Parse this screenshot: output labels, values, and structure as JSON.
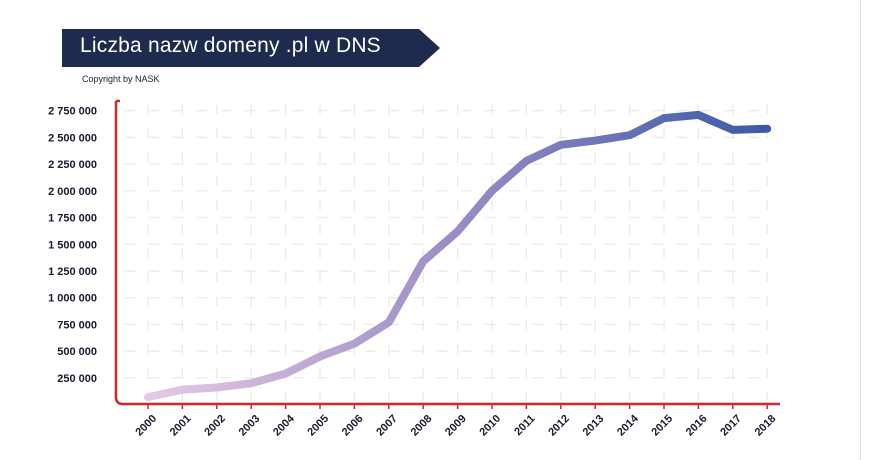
{
  "chart_data": {
    "type": "line",
    "title": "Liczba nazw domeny .pl w DNS",
    "subtitle": "Copyright by NASK",
    "xlabel": "",
    "ylabel": "",
    "categories": [
      "2000",
      "2001",
      "2002",
      "2003",
      "2004",
      "2005",
      "2006",
      "2007",
      "2008",
      "2009",
      "2010",
      "2011",
      "2012",
      "2013",
      "2014",
      "2015",
      "2016",
      "2017",
      "2018"
    ],
    "series": [
      {
        "name": "Liczba nazw domeny .pl",
        "values": [
          70000,
          140000,
          160000,
          200000,
          290000,
          450000,
          570000,
          770000,
          1340000,
          1620000,
          2000000,
          2280000,
          2430000,
          2470000,
          2520000,
          2680000,
          2710000,
          2570000,
          2580000
        ]
      }
    ],
    "yticks": [
      250000,
      500000,
      750000,
      1000000,
      1250000,
      1500000,
      1750000,
      2000000,
      2250000,
      2500000,
      2750000
    ],
    "ytick_labels": [
      "250 000",
      "500 000",
      "750 000",
      "1 000 000",
      "1 250 000",
      "1 500 000",
      "1 750 000",
      "2 000 000",
      "2 250 000",
      "2 500 000",
      "2 750 000"
    ],
    "ylim": [
      0,
      2750000
    ],
    "grid": true,
    "colors": {
      "line_start": "#e6c9e6",
      "line_mid": "#9a8cc4",
      "line_end": "#3a5aa6",
      "axis": "#d62728",
      "banner": "#1e2a4e"
    }
  }
}
